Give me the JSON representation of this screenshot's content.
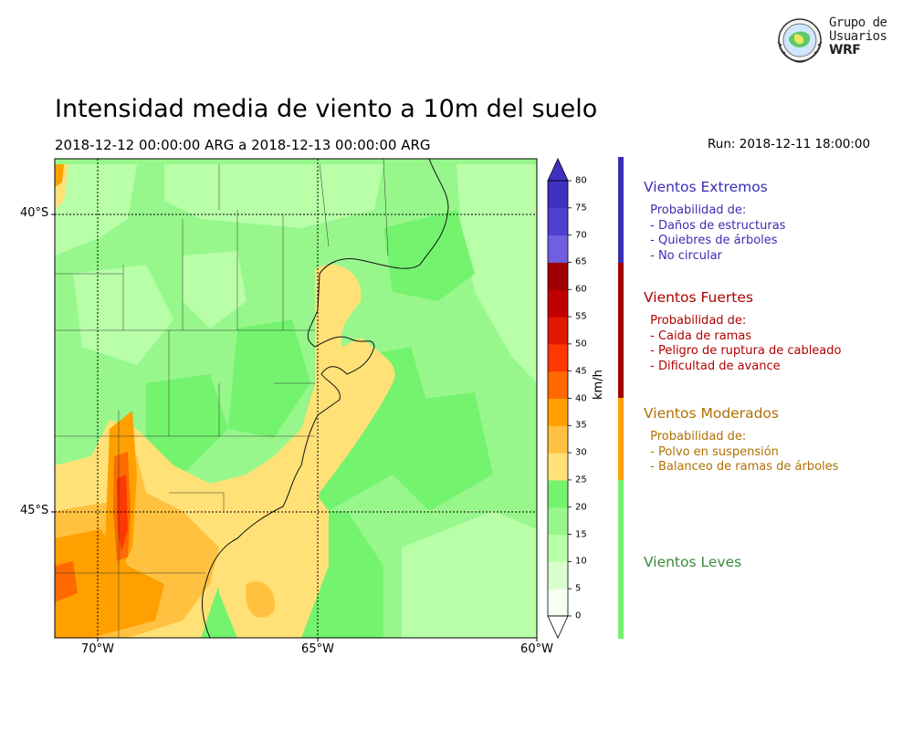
{
  "title": "Intensidad media de viento a 10m del suelo",
  "subtitle": "2018-12-12 00:00:00 ARG  a  2018-12-13 00:00:00 ARG",
  "run": "Run: 2018-12-11 18:00:00",
  "logo": {
    "line1": "Grupo de",
    "line2": "Usuarios",
    "line3": "WRF"
  },
  "map": {
    "lat_labels": [
      "40°S",
      "45°S"
    ],
    "lon_labels": [
      "70°W",
      "65°W",
      "60°W"
    ]
  },
  "colorbar": {
    "unit": "km/h",
    "ticks": [
      "0",
      "5",
      "10",
      "15",
      "20",
      "25",
      "30",
      "35",
      "40",
      "45",
      "50",
      "55",
      "60",
      "65",
      "70",
      "75",
      "80"
    ],
    "colors": [
      "#f7fff5",
      "#d9ffcf",
      "#b8ffa8",
      "#97f78c",
      "#74f36e",
      "#ffe177",
      "#ffc13f",
      "#ffa000",
      "#ff6a00",
      "#ff3700",
      "#e01800",
      "#c00000",
      "#a00000",
      "#7060e0",
      "#5040d0",
      "#4030c0"
    ]
  },
  "categories": [
    {
      "title": "Vientos Extremos",
      "color": "#3b2db5",
      "lines": [
        " Probabilidad de:",
        " - Daños de estructuras",
        " - Quiebres de árboles",
        " - No circular"
      ]
    },
    {
      "title": "Vientos Fuertes",
      "color": "#b00000",
      "lines": [
        " Probabilidad de:",
        " - Caida de ramas",
        " - Peligro de ruptura de cableado",
        " - Dificultad de avance"
      ]
    },
    {
      "title": "Vientos Moderados",
      "color": "#b07000",
      "lines": [
        " Probabilidad de:",
        " - Polvo en suspensión",
        " - Balanceo de ramas de árboles"
      ]
    },
    {
      "title": "Vientos Leves",
      "color": "#3c8a3c",
      "lines": []
    }
  ],
  "colors": {
    "extreme_bar": "#3b2db5",
    "strong_bar": "#a00000",
    "moderate_bar": "#ffa000",
    "light_bar": "#74f36e"
  }
}
